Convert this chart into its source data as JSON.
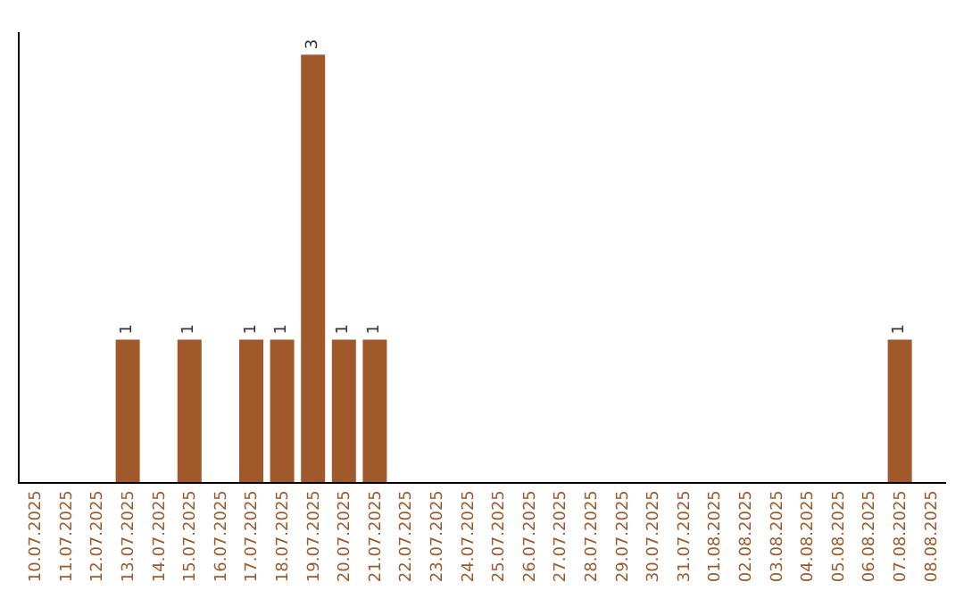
{
  "chart_data": {
    "type": "bar",
    "categories": [
      "10.07.2025",
      "11.07.2025",
      "12.07.2025",
      "13.07.2025",
      "14.07.2025",
      "15.07.2025",
      "16.07.2025",
      "17.07.2025",
      "18.07.2025",
      "19.07.2025",
      "20.07.2025",
      "21.07.2025",
      "22.07.2025",
      "23.07.2025",
      "24.07.2025",
      "25.07.2025",
      "26.07.2025",
      "27.07.2025",
      "28.07.2025",
      "29.07.2025",
      "30.07.2025",
      "31.07.2025",
      "01.08.2025",
      "02.08.2025",
      "03.08.2025",
      "04.08.2025",
      "05.08.2025",
      "06.08.2025",
      "07.08.2025",
      "08.08.2025"
    ],
    "values": [
      0,
      0,
      0,
      1,
      0,
      1,
      0,
      1,
      1,
      3,
      1,
      1,
      0,
      0,
      0,
      0,
      0,
      0,
      0,
      0,
      0,
      0,
      0,
      0,
      0,
      0,
      0,
      0,
      1,
      0
    ],
    "value_labels": [
      null,
      null,
      null,
      "1",
      null,
      "1",
      null,
      "1",
      "1",
      "3",
      "1",
      "1",
      null,
      null,
      null,
      null,
      null,
      null,
      null,
      null,
      null,
      null,
      null,
      null,
      null,
      null,
      null,
      null,
      "1",
      null
    ],
    "color": "#a0592a"
  }
}
